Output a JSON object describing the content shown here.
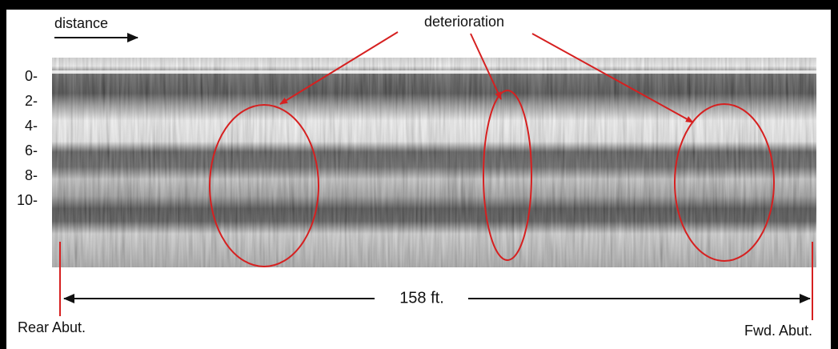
{
  "distance_label": "distance",
  "deterioration_label": "deterioration",
  "depth_labels": [
    "0-",
    "2-",
    "4-",
    "6-",
    "8-",
    "10-"
  ],
  "span_label": "158 ft.",
  "rear_label": "Rear Abut.",
  "forward_label": "Fwd. Abut."
}
